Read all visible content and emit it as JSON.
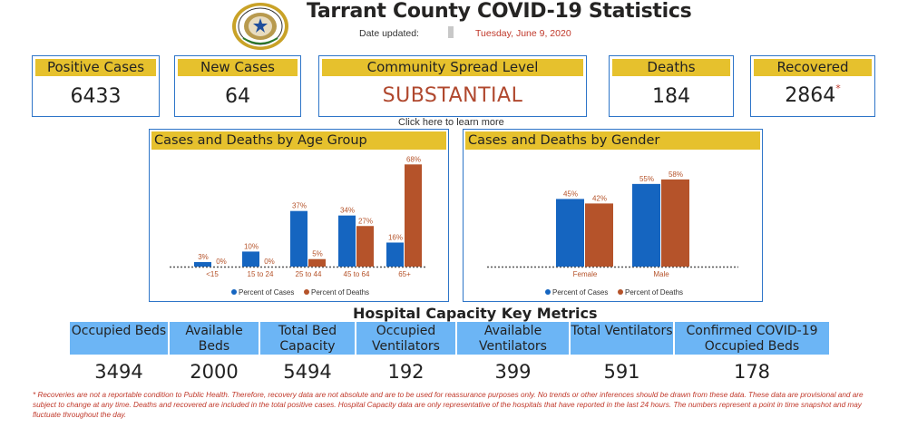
{
  "header": {
    "title": "Tarrant County COVID-19 Statistics",
    "date_label": "Date updated:",
    "date_value": "Tuesday, June 9, 2020"
  },
  "cards": {
    "positive": {
      "label": "Positive Cases",
      "value": "6433"
    },
    "new": {
      "label": "New Cases",
      "value": "64"
    },
    "spread": {
      "label": "Community Spread Level",
      "value": "SUBSTANTIAL"
    },
    "deaths": {
      "label": "Deaths",
      "value": "184"
    },
    "recovered": {
      "label": "Recovered",
      "value": "2864",
      "mark": "*"
    }
  },
  "learn_more": "Click here to learn more",
  "chart_data": [
    {
      "type": "bar",
      "title": "Cases and Deaths by Age Group",
      "categories": [
        "<15",
        "15 to 24",
        "25 to 44",
        "45 to 64",
        "65+"
      ],
      "series": [
        {
          "name": "Percent of Cases",
          "values": [
            3,
            10,
            37,
            34,
            16
          ],
          "labels": [
            "3%",
            "10%",
            "37%",
            "34%",
            "16%"
          ],
          "color": "#1565c0"
        },
        {
          "name": "Percent of Deaths",
          "values": [
            0,
            0,
            5,
            27,
            68
          ],
          "labels": [
            "0%",
            "0%",
            "5%",
            "27%",
            "68%"
          ],
          "color": "#b5532a"
        }
      ],
      "ylim": [
        0,
        70
      ],
      "legend": "bottom"
    },
    {
      "type": "bar",
      "title": "Cases and Deaths by Gender",
      "categories": [
        "Female",
        "Male"
      ],
      "series": [
        {
          "name": "Percent of Cases",
          "values": [
            45,
            55
          ],
          "labels": [
            "45%",
            "55%"
          ],
          "color": "#1565c0"
        },
        {
          "name": "Percent of Deaths",
          "values": [
            42,
            58
          ],
          "labels": [
            "42%",
            "58%"
          ],
          "color": "#b5532a"
        }
      ],
      "ylim": [
        0,
        70
      ],
      "legend": "bottom"
    }
  ],
  "hospital": {
    "title": "Hospital Capacity Key Metrics",
    "metrics": [
      {
        "label": "Occupied Beds",
        "value": "3494"
      },
      {
        "label": "Available Beds",
        "value": "2000"
      },
      {
        "label": "Total Bed Capacity",
        "value": "5494"
      },
      {
        "label": "Occupied Ventilators",
        "value": "192"
      },
      {
        "label": "Available Ventilators",
        "value": "399"
      },
      {
        "label": "Total Ventilators",
        "value": "591"
      },
      {
        "label": "Confirmed COVID-19 Occupied Beds",
        "value": "178"
      }
    ]
  },
  "footnote": "* Recoveries are not a reportable condition to Public Health. Therefore, recovery data are not absolute and are to be used for reassurance purposes only. No trends or other inferences should be drawn from these data. These data are provisional and are subject to change at any time. Deaths and recovered are included in the total positive cases. Hospital Capacity data are only representative of the hospitals that have reported in the last 24 hours. The numbers represent a point in time snapshot and may fluctuate throughout the day.",
  "colors": {
    "accent": "#e6c12d",
    "border": "#2e75c8",
    "cases": "#1565c0",
    "deaths": "#b5532a",
    "hospital": "#6cb5f5"
  }
}
